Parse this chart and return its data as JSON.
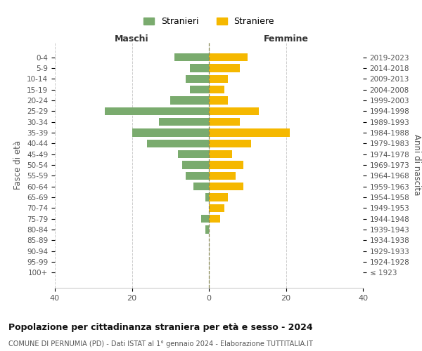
{
  "age_groups": [
    "100+",
    "95-99",
    "90-94",
    "85-89",
    "80-84",
    "75-79",
    "70-74",
    "65-69",
    "60-64",
    "55-59",
    "50-54",
    "45-49",
    "40-44",
    "35-39",
    "30-34",
    "25-29",
    "20-24",
    "15-19",
    "10-14",
    "5-9",
    "0-4"
  ],
  "birth_years": [
    "≤ 1923",
    "1924-1928",
    "1929-1933",
    "1934-1938",
    "1939-1943",
    "1944-1948",
    "1949-1953",
    "1954-1958",
    "1959-1963",
    "1964-1968",
    "1969-1973",
    "1974-1978",
    "1979-1983",
    "1984-1988",
    "1989-1993",
    "1994-1998",
    "1999-2003",
    "2004-2008",
    "2009-2013",
    "2014-2018",
    "2019-2023"
  ],
  "maschi": [
    0,
    0,
    0,
    0,
    1,
    2,
    0,
    1,
    4,
    6,
    7,
    8,
    16,
    20,
    13,
    27,
    10,
    5,
    6,
    5,
    9
  ],
  "femmine": [
    0,
    0,
    0,
    0,
    0,
    3,
    4,
    5,
    9,
    7,
    9,
    6,
    11,
    21,
    8,
    13,
    5,
    4,
    5,
    8,
    10
  ],
  "color_maschi": "#7aab6e",
  "color_femmine": "#f5b800",
  "title1": "Popolazione per cittadinanza straniera per età e sesso - 2024",
  "title2": "COMUNE DI PERNUMIA (PD) - Dati ISTAT al 1° gennaio 2024 - Elaborazione TUTTITALIA.IT",
  "label_maschi": "Stranieri",
  "label_femmine": "Straniere",
  "xlabel_left": "Maschi",
  "xlabel_right": "Femmine",
  "ylabel_left": "Fasce di età",
  "ylabel_right": "Anni di nascita",
  "xlim": 40,
  "background_color": "#ffffff",
  "grid_color": "#cccccc"
}
